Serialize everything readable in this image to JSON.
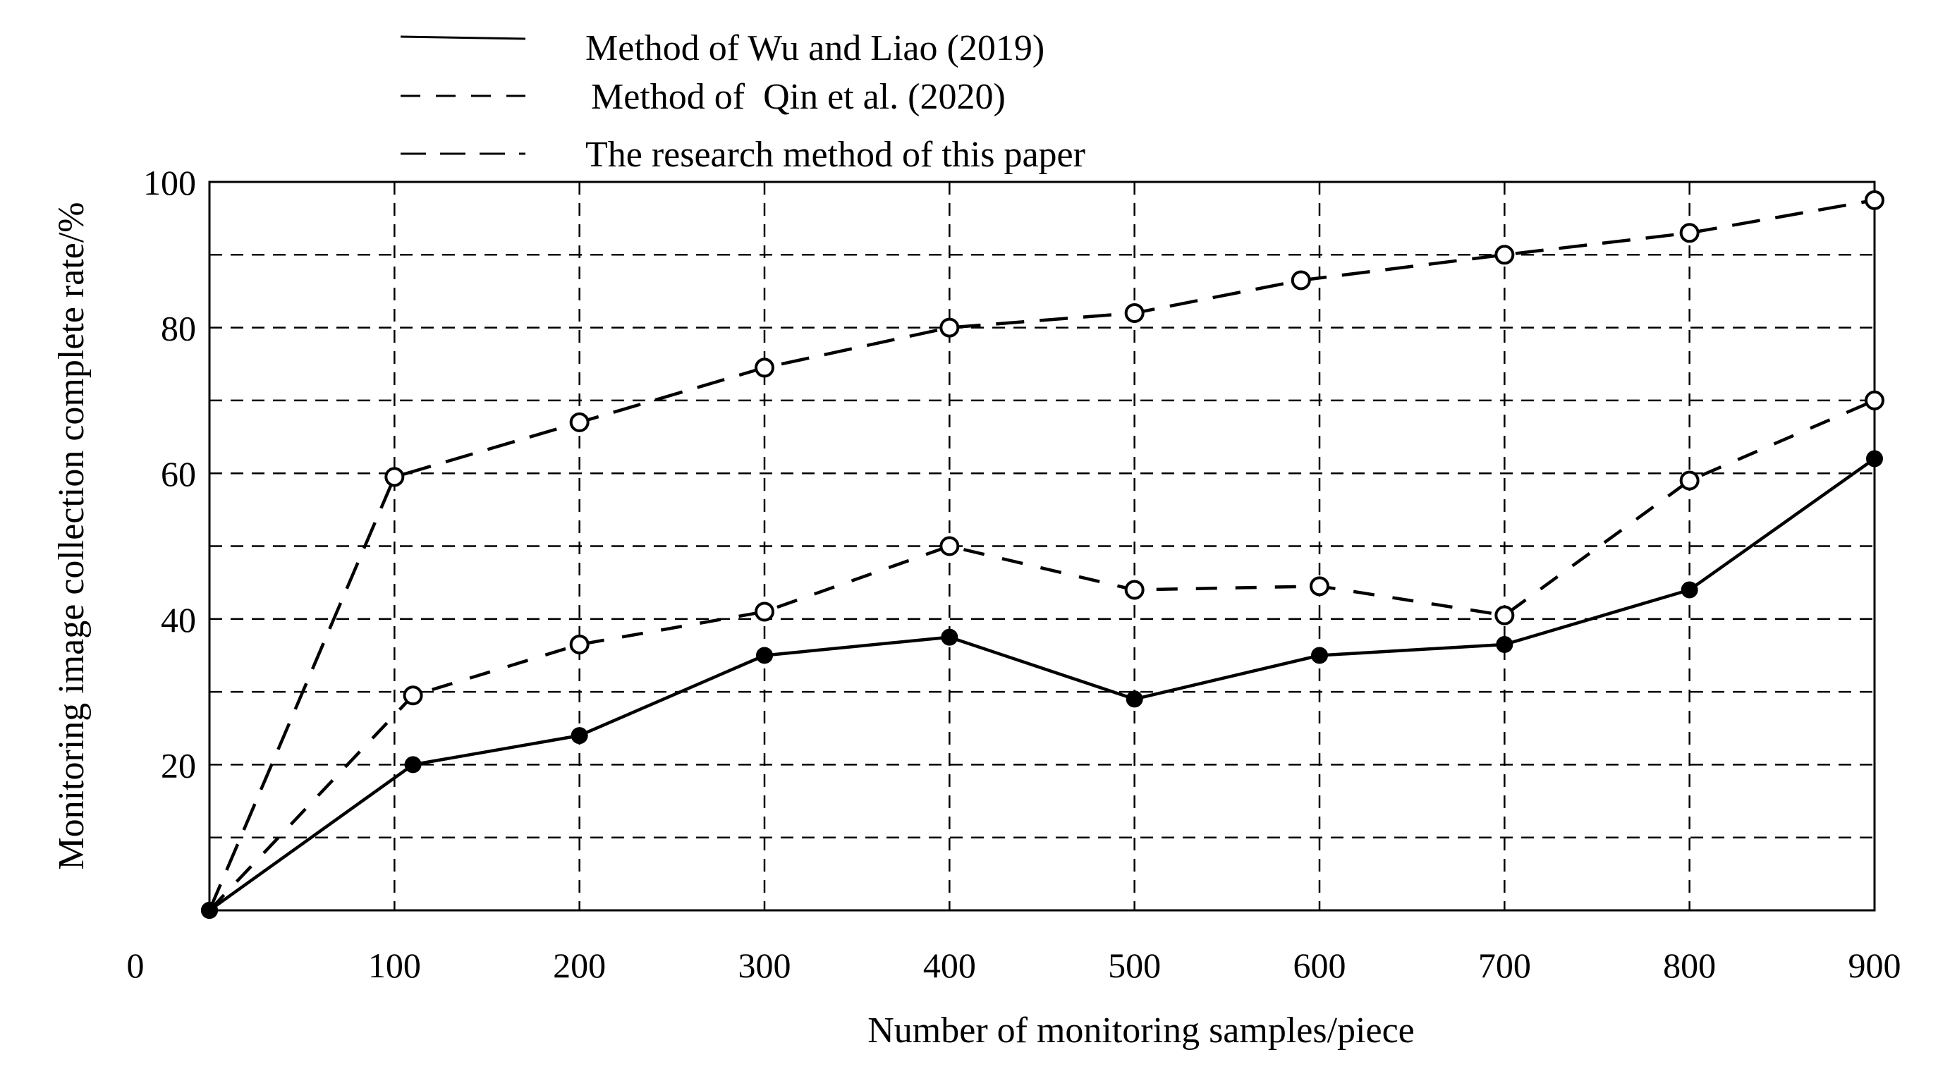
{
  "chart_data": {
    "type": "line",
    "title": "",
    "xlabel": "Number of monitoring samples/piece",
    "ylabel": "Monitoring image collection complete rate/%",
    "xlim": [
      0,
      900
    ],
    "ylim": [
      0,
      100
    ],
    "grid": true,
    "legend_position": "top",
    "x_ticks": [
      "0",
      "100",
      "200",
      "300",
      "400",
      "500",
      "600",
      "700",
      "800",
      "900"
    ],
    "y_ticks": [
      "20",
      "40",
      "60",
      "80",
      "100"
    ],
    "series": [
      {
        "name": "Method of Wu and Liao (2019)",
        "style": "solid",
        "marker": "filled-circle",
        "x": [
          0,
          110,
          200,
          300,
          400,
          500,
          600,
          700,
          800,
          900
        ],
        "y": [
          0,
          20,
          24,
          35,
          37.5,
          29,
          35,
          36.5,
          44,
          62
        ]
      },
      {
        "name": "Method of  Qin et al. (2020)",
        "style": "dashed",
        "marker": "open-circle",
        "x": [
          0,
          110,
          200,
          300,
          400,
          500,
          600,
          700,
          800,
          900
        ],
        "y": [
          0,
          29.5,
          36.5,
          41,
          50,
          44,
          44.5,
          40.5,
          59,
          70
        ]
      },
      {
        "name": "The research method of this paper",
        "style": "long-dashed",
        "marker": "open-circle",
        "x": [
          0,
          100,
          200,
          300,
          400,
          500,
          590,
          700,
          800,
          900
        ],
        "y": [
          0,
          59.5,
          67,
          74.5,
          80,
          82,
          86.5,
          90,
          93,
          97.5
        ]
      }
    ]
  }
}
